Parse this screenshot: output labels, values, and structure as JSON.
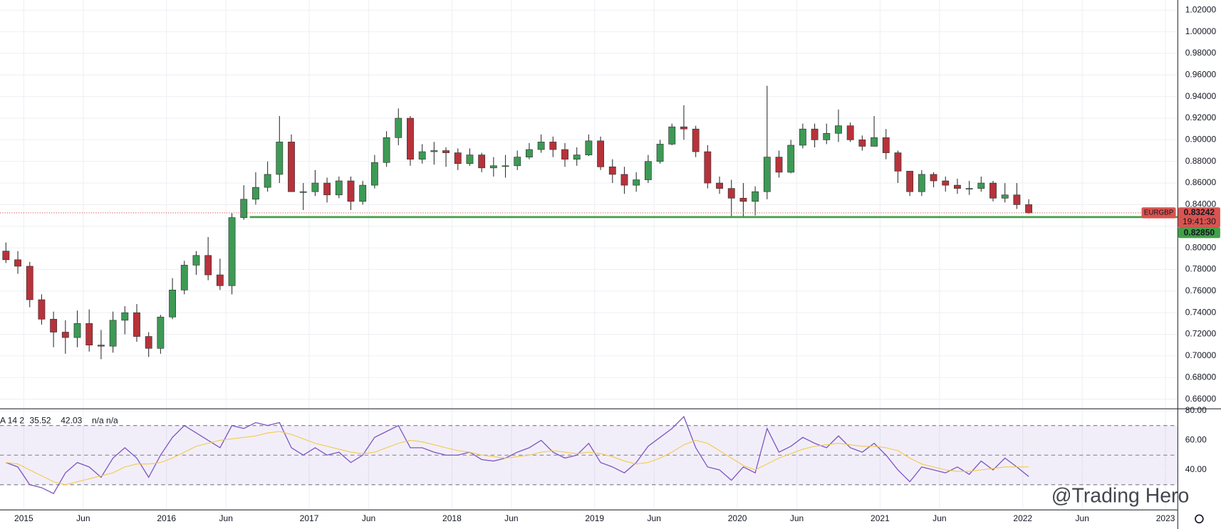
{
  "chart_data": [
    {
      "type": "candlestick",
      "symbol": "EURGBP",
      "x": [
        "2014-11",
        "2014-12",
        "2015-01",
        "2015-02",
        "2015-03",
        "2015-04",
        "2015-05",
        "2015-06",
        "2015-07",
        "2015-08",
        "2015-09",
        "2015-10",
        "2015-11",
        "2015-12",
        "2016-01",
        "2016-02",
        "2016-03",
        "2016-04",
        "2016-05",
        "2016-06",
        "2016-07",
        "2016-08",
        "2016-09",
        "2016-10",
        "2016-11",
        "2016-12",
        "2017-01",
        "2017-02",
        "2017-03",
        "2017-04",
        "2017-05",
        "2017-06",
        "2017-07",
        "2017-08",
        "2017-09",
        "2017-10",
        "2017-11",
        "2017-12",
        "2018-01",
        "2018-02",
        "2018-03",
        "2018-04",
        "2018-05",
        "2018-06",
        "2018-07",
        "2018-08",
        "2018-09",
        "2018-10",
        "2018-11",
        "2018-12",
        "2019-01",
        "2019-02",
        "2019-03",
        "2019-04",
        "2019-05",
        "2019-06",
        "2019-07",
        "2019-08",
        "2019-09",
        "2019-10",
        "2019-11",
        "2019-12",
        "2020-01",
        "2020-02",
        "2020-03",
        "2020-04",
        "2020-05",
        "2020-06",
        "2020-07",
        "2020-08",
        "2020-09",
        "2020-10",
        "2020-11",
        "2020-12",
        "2021-01",
        "2021-02",
        "2021-03",
        "2021-04",
        "2021-05",
        "2021-06",
        "2021-07",
        "2021-08",
        "2021-09",
        "2021-10",
        "2021-11",
        "2021-12",
        "2022-01"
      ],
      "open": [
        0.797,
        0.789,
        0.783,
        0.752,
        0.734,
        0.722,
        0.717,
        0.73,
        0.71,
        0.709,
        0.733,
        0.74,
        0.718,
        0.707,
        0.736,
        0.761,
        0.784,
        0.793,
        0.775,
        0.765,
        0.828,
        0.845,
        0.856,
        0.868,
        0.898,
        0.852,
        0.852,
        0.86,
        0.849,
        0.862,
        0.843,
        0.858,
        0.879,
        0.902,
        0.92,
        0.882,
        0.889,
        0.89,
        0.888,
        0.878,
        0.886,
        0.874,
        0.876,
        0.876,
        0.884,
        0.891,
        0.898,
        0.891,
        0.882,
        0.886,
        0.899,
        0.875,
        0.868,
        0.858,
        0.863,
        0.88,
        0.896,
        0.912,
        0.91,
        0.889,
        0.86,
        0.855,
        0.846,
        0.843,
        0.852,
        0.884,
        0.87,
        0.895,
        0.91,
        0.9,
        0.906,
        0.913,
        0.9,
        0.894,
        0.902,
        0.888,
        0.871,
        0.852,
        0.868,
        0.862,
        0.858,
        0.855,
        0.855,
        0.86,
        0.846,
        0.849,
        0.84
      ],
      "high": [
        0.805,
        0.797,
        0.787,
        0.757,
        0.741,
        0.733,
        0.742,
        0.743,
        0.724,
        0.741,
        0.746,
        0.748,
        0.722,
        0.738,
        0.772,
        0.788,
        0.797,
        0.81,
        0.79,
        0.832,
        0.858,
        0.87,
        0.88,
        0.922,
        0.905,
        0.86,
        0.872,
        0.865,
        0.866,
        0.866,
        0.862,
        0.886,
        0.908,
        0.929,
        0.922,
        0.896,
        0.898,
        0.893,
        0.892,
        0.892,
        0.888,
        0.884,
        0.886,
        0.89,
        0.897,
        0.905,
        0.903,
        0.897,
        0.893,
        0.905,
        0.903,
        0.882,
        0.875,
        0.87,
        0.886,
        0.9,
        0.915,
        0.932,
        0.913,
        0.895,
        0.866,
        0.863,
        0.86,
        0.857,
        0.95,
        0.89,
        0.9,
        0.915,
        0.915,
        0.915,
        0.928,
        0.916,
        0.904,
        0.922,
        0.91,
        0.89,
        0.87,
        0.872,
        0.87,
        0.866,
        0.864,
        0.862,
        0.866,
        0.862,
        0.86,
        0.86,
        0.845
      ],
      "low": [
        0.786,
        0.776,
        0.745,
        0.729,
        0.708,
        0.702,
        0.708,
        0.704,
        0.697,
        0.703,
        0.72,
        0.713,
        0.699,
        0.702,
        0.734,
        0.757,
        0.775,
        0.77,
        0.761,
        0.757,
        0.826,
        0.84,
        0.852,
        0.86,
        0.852,
        0.835,
        0.848,
        0.842,
        0.846,
        0.835,
        0.84,
        0.855,
        0.875,
        0.895,
        0.876,
        0.878,
        0.877,
        0.875,
        0.872,
        0.876,
        0.87,
        0.866,
        0.865,
        0.872,
        0.882,
        0.888,
        0.884,
        0.875,
        0.876,
        0.885,
        0.872,
        0.86,
        0.85,
        0.852,
        0.86,
        0.878,
        0.895,
        0.9,
        0.884,
        0.855,
        0.85,
        0.828,
        0.829,
        0.83,
        0.845,
        0.865,
        0.869,
        0.892,
        0.893,
        0.896,
        0.898,
        0.898,
        0.89,
        0.896,
        0.882,
        0.86,
        0.848,
        0.848,
        0.856,
        0.852,
        0.85,
        0.849,
        0.852,
        0.843,
        0.842,
        0.836,
        0.8317
      ],
      "close": [
        0.789,
        0.783,
        0.752,
        0.734,
        0.722,
        0.717,
        0.73,
        0.71,
        0.709,
        0.733,
        0.74,
        0.718,
        0.707,
        0.736,
        0.761,
        0.784,
        0.793,
        0.775,
        0.765,
        0.828,
        0.845,
        0.856,
        0.868,
        0.898,
        0.852,
        0.852,
        0.86,
        0.849,
        0.862,
        0.843,
        0.858,
        0.879,
        0.902,
        0.92,
        0.882,
        0.889,
        0.89,
        0.888,
        0.878,
        0.886,
        0.874,
        0.876,
        0.876,
        0.884,
        0.891,
        0.898,
        0.891,
        0.882,
        0.886,
        0.899,
        0.875,
        0.868,
        0.858,
        0.863,
        0.88,
        0.896,
        0.912,
        0.91,
        0.889,
        0.86,
        0.855,
        0.846,
        0.843,
        0.852,
        0.884,
        0.87,
        0.895,
        0.91,
        0.9,
        0.906,
        0.913,
        0.9,
        0.894,
        0.902,
        0.888,
        0.871,
        0.852,
        0.868,
        0.862,
        0.858,
        0.855,
        0.855,
        0.86,
        0.846,
        0.849,
        0.84,
        0.8324
      ],
      "up_color": "#3d9a55",
      "down_color": "#b8323a",
      "xlim": [
        "2014-11",
        "2023-02"
      ],
      "xticks": [
        {
          "value": "2015-01",
          "label": "2015"
        },
        {
          "value": "2015-06",
          "label": "Jun"
        },
        {
          "value": "2016-01",
          "label": "2016"
        },
        {
          "value": "2016-06",
          "label": "Jun"
        },
        {
          "value": "2017-01",
          "label": "2017"
        },
        {
          "value": "2017-06",
          "label": "Jun"
        },
        {
          "value": "2018-01",
          "label": "2018"
        },
        {
          "value": "2018-06",
          "label": "Jun"
        },
        {
          "value": "2019-01",
          "label": "2019"
        },
        {
          "value": "2019-06",
          "label": "Jun"
        },
        {
          "value": "2020-01",
          "label": "2020"
        },
        {
          "value": "2020-06",
          "label": "Jun"
        },
        {
          "value": "2021-01",
          "label": "2021"
        },
        {
          "value": "2021-06",
          "label": "Jun"
        },
        {
          "value": "2022-01",
          "label": "2022"
        },
        {
          "value": "2022-06",
          "label": "Jun"
        },
        {
          "value": "2023-01",
          "label": "2023"
        }
      ],
      "ylim": [
        0.6514,
        1.0294
      ],
      "yticks": [
        {
          "value": 0.66,
          "label": "0.66000"
        },
        {
          "value": 0.68,
          "label": "0.68000"
        },
        {
          "value": 0.7,
          "label": "0.70000"
        },
        {
          "value": 0.72,
          "label": "0.72000"
        },
        {
          "value": 0.74,
          "label": "0.74000"
        },
        {
          "value": 0.76,
          "label": "0.76000"
        },
        {
          "value": 0.78,
          "label": "0.78000"
        },
        {
          "value": 0.8,
          "label": "0.80000"
        },
        {
          "value": 0.82,
          "label": "0.82000"
        },
        {
          "value": 0.84,
          "label": "0.84000"
        },
        {
          "value": 0.86,
          "label": "0.86000"
        },
        {
          "value": 0.88,
          "label": "0.88000"
        },
        {
          "value": 0.9,
          "label": "0.90000"
        },
        {
          "value": 0.92,
          "label": "0.92000"
        },
        {
          "value": 0.94,
          "label": "0.94000"
        },
        {
          "value": 0.96,
          "label": "0.96000"
        },
        {
          "value": 0.98,
          "label": "0.98000"
        },
        {
          "value": 1.0,
          "label": "1.00000"
        },
        {
          "value": 1.02,
          "label": "1.02000"
        }
      ],
      "grid": true,
      "horizontal_lines": [
        {
          "value": 0.8285,
          "label": "0.82850",
          "color": "#43a047",
          "from": "2016-08"
        }
      ],
      "last_price": {
        "value": 0.83242,
        "label": "0.83242",
        "countdown": "19:41:30",
        "color": "#d9534f"
      },
      "watermark": "@Trading Hero"
    },
    {
      "type": "line",
      "indicator_label": "A 14 2",
      "legend_suffix": "n/a n/a",
      "x": [
        "2014-11",
        "2014-12",
        "2015-01",
        "2015-02",
        "2015-03",
        "2015-04",
        "2015-05",
        "2015-06",
        "2015-07",
        "2015-08",
        "2015-09",
        "2015-10",
        "2015-11",
        "2015-12",
        "2016-01",
        "2016-02",
        "2016-03",
        "2016-04",
        "2016-05",
        "2016-06",
        "2016-07",
        "2016-08",
        "2016-09",
        "2016-10",
        "2016-11",
        "2016-12",
        "2017-01",
        "2017-02",
        "2017-03",
        "2017-04",
        "2017-05",
        "2017-06",
        "2017-07",
        "2017-08",
        "2017-09",
        "2017-10",
        "2017-11",
        "2017-12",
        "2018-01",
        "2018-02",
        "2018-03",
        "2018-04",
        "2018-05",
        "2018-06",
        "2018-07",
        "2018-08",
        "2018-09",
        "2018-10",
        "2018-11",
        "2018-12",
        "2019-01",
        "2019-02",
        "2019-03",
        "2019-04",
        "2019-05",
        "2019-06",
        "2019-07",
        "2019-08",
        "2019-09",
        "2019-10",
        "2019-11",
        "2019-12",
        "2020-01",
        "2020-02",
        "2020-03",
        "2020-04",
        "2020-05",
        "2020-06",
        "2020-07",
        "2020-08",
        "2020-09",
        "2020-10",
        "2020-11",
        "2020-12",
        "2021-01",
        "2021-02",
        "2021-03",
        "2021-04",
        "2021-05",
        "2021-06",
        "2021-07",
        "2021-08",
        "2021-09",
        "2021-10",
        "2021-11",
        "2021-12",
        "2022-01"
      ],
      "series": [
        {
          "color": "#7e57c2",
          "values": [
            45,
            42,
            30,
            28,
            24,
            38,
            45,
            42,
            35,
            48,
            55,
            48,
            35,
            50,
            62,
            70,
            65,
            60,
            55,
            70,
            68,
            72,
            70,
            72,
            55,
            50,
            55,
            50,
            52,
            45,
            50,
            62,
            66,
            70,
            55,
            55,
            52,
            50,
            50,
            52,
            47,
            46,
            48,
            52,
            55,
            60,
            52,
            48,
            50,
            58,
            45,
            42,
            38,
            45,
            56,
            62,
            68,
            76,
            55,
            42,
            40,
            33,
            42,
            38,
            68,
            52,
            56,
            62,
            58,
            55,
            63,
            55,
            52,
            58,
            50,
            40,
            32,
            42,
            40,
            38,
            42,
            37,
            46,
            40,
            48,
            42,
            35.52
          ]
        },
        {
          "color": "#f2c94c",
          "values": [
            45,
            44,
            40,
            36,
            32,
            30,
            32,
            34,
            36,
            38,
            42,
            44,
            44,
            45,
            48,
            52,
            56,
            58,
            60,
            61,
            62,
            63,
            65,
            66,
            64,
            61,
            58,
            56,
            54,
            52,
            51,
            52,
            55,
            58,
            60,
            59,
            57,
            55,
            53,
            52,
            50,
            49,
            48,
            49,
            50,
            52,
            53,
            52,
            51,
            52,
            51,
            49,
            46,
            44,
            45,
            48,
            52,
            57,
            60,
            58,
            53,
            48,
            43,
            40,
            44,
            48,
            51,
            54,
            56,
            57,
            58,
            57,
            56,
            56,
            55,
            53,
            48,
            44,
            42,
            40,
            39,
            39,
            40,
            41,
            42,
            42,
            42.03
          ]
        }
      ],
      "ylim": [
        13.2,
        81.05
      ],
      "yticks": [
        {
          "value": 80,
          "label": "80.00"
        },
        {
          "value": 60,
          "label": "60.00"
        },
        {
          "value": 40,
          "label": "40.00"
        }
      ],
      "levels": [
        70,
        50,
        30
      ],
      "band": [
        30,
        70
      ],
      "band_color": "#7e57c2",
      "grid": true
    }
  ]
}
